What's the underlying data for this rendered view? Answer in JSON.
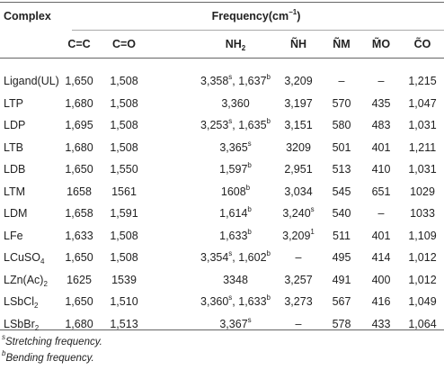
{
  "header": {
    "complex": "Complex",
    "frequency": [
      "Frequency(cm",
      {
        "sup": "−1"
      },
      ")"
    ],
    "columns": [
      "C=C",
      "C=O",
      [
        "NH",
        {
          "sub": "2"
        }
      ],
      "ÑH",
      "ÑM",
      "M̃O",
      "C̃O"
    ]
  },
  "rows": [
    [
      "Ligand(UL)",
      "1,650",
      "1,508",
      [
        "3,358",
        {
          "sup": "s"
        },
        ", 1,637",
        {
          "sup": "b"
        }
      ],
      "3,209",
      "–",
      "–",
      "1,215"
    ],
    [
      "LTP",
      "1,680",
      "1,508",
      "3,360",
      "3,197",
      "570",
      "435",
      "1,047"
    ],
    [
      "LDP",
      "1,695",
      "1,508",
      [
        "3,253",
        {
          "sup": "s"
        },
        ", 1,635",
        {
          "sup": "b"
        }
      ],
      "3,151",
      "580",
      "483",
      "1,031"
    ],
    [
      "LTB",
      "1,680",
      "1,508",
      [
        "3,365",
        {
          "sup": "s"
        }
      ],
      "3209",
      "501",
      "401",
      "1,211"
    ],
    [
      "LDB",
      "1,650",
      "1,550",
      [
        "1,597",
        {
          "sup": "b"
        }
      ],
      "2,951",
      "513",
      "410",
      "1,031"
    ],
    [
      "LTM",
      "1658",
      "1561",
      [
        "1608",
        {
          "sup": "b"
        }
      ],
      "3,034",
      "545",
      "651",
      "1029"
    ],
    [
      "LDM",
      "1,658",
      "1,591",
      [
        "1,614",
        {
          "sup": "b"
        }
      ],
      [
        "3,240",
        {
          "sup": "s"
        }
      ],
      "540",
      "–",
      "1033"
    ],
    [
      "LFe",
      "1,633",
      "1,508",
      [
        "1,633",
        {
          "sup": "b"
        }
      ],
      [
        "3,209",
        {
          "sup": "1"
        }
      ],
      "511",
      "401",
      "1,109"
    ],
    [
      [
        "LCuSO",
        {
          "sub": "4"
        }
      ],
      "1,650",
      "1,508",
      [
        "3,354",
        {
          "sup": "s"
        },
        ", 1,602",
        {
          "sup": "b"
        }
      ],
      "–",
      "495",
      "414",
      "1,012"
    ],
    [
      [
        "LZn(Ac)",
        {
          "sub": "2"
        }
      ],
      "1625",
      "1539",
      "3348",
      "3,257",
      "491",
      "400",
      "1,012"
    ],
    [
      [
        "LSbCl",
        {
          "sub": "2"
        }
      ],
      "1,650",
      "1,510",
      [
        "3,360",
        {
          "sup": "s"
        },
        ", 1,633",
        {
          "sup": "b"
        }
      ],
      "3,273",
      "567",
      "416",
      "1,049"
    ],
    [
      [
        "LSbBr",
        {
          "sub": "2"
        }
      ],
      "1,680",
      "1,513",
      [
        "3,367",
        {
          "sup": "s"
        }
      ],
      "–",
      "578",
      "433",
      "1,064"
    ]
  ],
  "footnotes": [
    [
      {
        "sup": "s"
      },
      "Stretching frequency."
    ],
    [
      {
        "sup": "b"
      },
      "Bending frequency."
    ]
  ]
}
